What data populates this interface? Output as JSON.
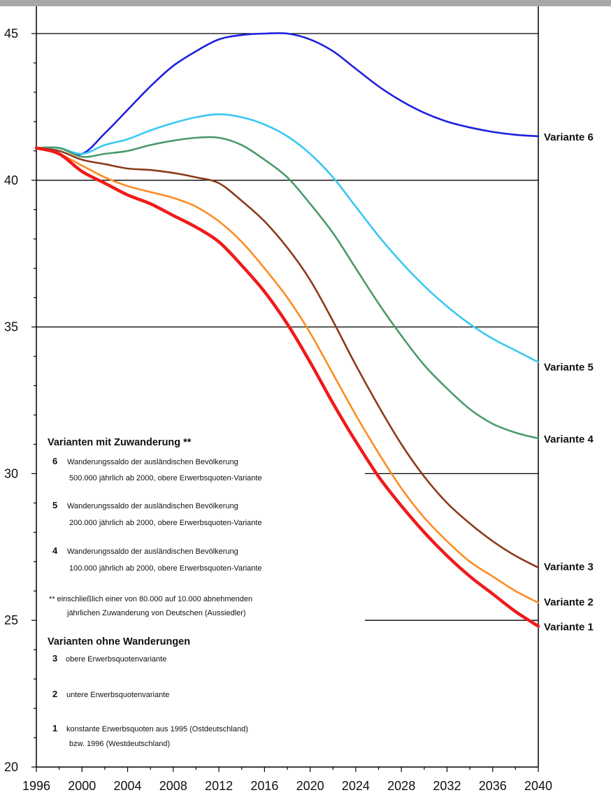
{
  "chart_data": {
    "type": "line",
    "xlim": [
      1996,
      2040
    ],
    "ylim": [
      20,
      45
    ],
    "x_ticks": [
      "1996",
      "2000",
      "2004",
      "2008",
      "2012",
      "2016",
      "2020",
      "2024",
      "2028",
      "2032",
      "2036",
      "2040"
    ],
    "y_ticks": [
      "20",
      "25",
      "30",
      "35",
      "40",
      "45"
    ],
    "gridlines_y": [
      25,
      30,
      35,
      40,
      45
    ],
    "series": [
      {
        "name": "Variante 6",
        "color": "#1f1fe0",
        "points": [
          [
            1996,
            41.1
          ],
          [
            1998,
            41.1
          ],
          [
            2000,
            40.9
          ],
          [
            2002,
            41.6
          ],
          [
            2004,
            42.4
          ],
          [
            2006,
            43.2
          ],
          [
            2008,
            43.9
          ],
          [
            2010,
            44.4
          ],
          [
            2012,
            44.8
          ],
          [
            2014,
            44.95
          ],
          [
            2016,
            45.0
          ],
          [
            2018,
            45.0
          ],
          [
            2020,
            44.8
          ],
          [
            2022,
            44.4
          ],
          [
            2024,
            43.8
          ],
          [
            2026,
            43.2
          ],
          [
            2028,
            42.7
          ],
          [
            2030,
            42.3
          ],
          [
            2032,
            42.0
          ],
          [
            2034,
            41.8
          ],
          [
            2036,
            41.65
          ],
          [
            2038,
            41.55
          ],
          [
            2040,
            41.5
          ]
        ]
      },
      {
        "name": "Variante 5",
        "color": "#38c8f4",
        "points": [
          [
            1996,
            41.1
          ],
          [
            1998,
            41.1
          ],
          [
            2000,
            40.9
          ],
          [
            2002,
            41.2
          ],
          [
            2004,
            41.4
          ],
          [
            2006,
            41.7
          ],
          [
            2008,
            41.95
          ],
          [
            2010,
            42.15
          ],
          [
            2012,
            42.25
          ],
          [
            2014,
            42.15
          ],
          [
            2016,
            41.9
          ],
          [
            2018,
            41.5
          ],
          [
            2020,
            40.9
          ],
          [
            2022,
            40.1
          ],
          [
            2024,
            39.1
          ],
          [
            2026,
            38.1
          ],
          [
            2028,
            37.2
          ],
          [
            2030,
            36.4
          ],
          [
            2032,
            35.7
          ],
          [
            2034,
            35.1
          ],
          [
            2036,
            34.6
          ],
          [
            2038,
            34.2
          ],
          [
            2040,
            33.8
          ]
        ]
      },
      {
        "name": "Variante 4",
        "color": "#4a9a6a",
        "points": [
          [
            1996,
            41.1
          ],
          [
            1998,
            41.1
          ],
          [
            2000,
            40.8
          ],
          [
            2002,
            40.9
          ],
          [
            2004,
            41.0
          ],
          [
            2006,
            41.2
          ],
          [
            2008,
            41.35
          ],
          [
            2010,
            41.45
          ],
          [
            2012,
            41.45
          ],
          [
            2014,
            41.2
          ],
          [
            2016,
            40.7
          ],
          [
            2018,
            40.1
          ],
          [
            2020,
            39.2
          ],
          [
            2022,
            38.2
          ],
          [
            2024,
            37.0
          ],
          [
            2026,
            35.8
          ],
          [
            2028,
            34.7
          ],
          [
            2030,
            33.7
          ],
          [
            2032,
            32.9
          ],
          [
            2034,
            32.2
          ],
          [
            2036,
            31.7
          ],
          [
            2038,
            31.4
          ],
          [
            2040,
            31.2
          ]
        ]
      },
      {
        "name": "Variante 3",
        "color": "#8b3a1a",
        "points": [
          [
            1996,
            41.1
          ],
          [
            1998,
            41.0
          ],
          [
            2000,
            40.7
          ],
          [
            2002,
            40.55
          ],
          [
            2004,
            40.4
          ],
          [
            2006,
            40.35
          ],
          [
            2008,
            40.25
          ],
          [
            2010,
            40.1
          ],
          [
            2012,
            39.9
          ],
          [
            2014,
            39.3
          ],
          [
            2016,
            38.6
          ],
          [
            2018,
            37.7
          ],
          [
            2020,
            36.6
          ],
          [
            2022,
            35.2
          ],
          [
            2024,
            33.7
          ],
          [
            2026,
            32.3
          ],
          [
            2028,
            31.0
          ],
          [
            2030,
            29.9
          ],
          [
            2032,
            29.0
          ],
          [
            2034,
            28.3
          ],
          [
            2036,
            27.7
          ],
          [
            2038,
            27.2
          ],
          [
            2040,
            26.8
          ]
        ]
      },
      {
        "name": "Variante 2",
        "color": "#ff8a1e",
        "points": [
          [
            1996,
            41.1
          ],
          [
            1998,
            40.9
          ],
          [
            2000,
            40.5
          ],
          [
            2002,
            40.1
          ],
          [
            2004,
            39.8
          ],
          [
            2006,
            39.6
          ],
          [
            2008,
            39.4
          ],
          [
            2010,
            39.1
          ],
          [
            2012,
            38.6
          ],
          [
            2014,
            37.9
          ],
          [
            2016,
            37.0
          ],
          [
            2018,
            36.0
          ],
          [
            2020,
            34.8
          ],
          [
            2022,
            33.4
          ],
          [
            2024,
            32.0
          ],
          [
            2026,
            30.7
          ],
          [
            2028,
            29.5
          ],
          [
            2030,
            28.5
          ],
          [
            2032,
            27.7
          ],
          [
            2034,
            27.0
          ],
          [
            2036,
            26.5
          ],
          [
            2038,
            26.0
          ],
          [
            2040,
            25.6
          ]
        ]
      },
      {
        "name": "Variante 1",
        "color": "#f01a1a",
        "points": [
          [
            1996,
            41.1
          ],
          [
            1998,
            40.9
          ],
          [
            2000,
            40.3
          ],
          [
            2002,
            39.9
          ],
          [
            2004,
            39.5
          ],
          [
            2006,
            39.2
          ],
          [
            2008,
            38.8
          ],
          [
            2010,
            38.4
          ],
          [
            2012,
            37.9
          ],
          [
            2014,
            37.1
          ],
          [
            2016,
            36.2
          ],
          [
            2018,
            35.1
          ],
          [
            2020,
            33.8
          ],
          [
            2022,
            32.4
          ],
          [
            2024,
            31.1
          ],
          [
            2026,
            29.9
          ],
          [
            2028,
            28.9
          ],
          [
            2030,
            28.0
          ],
          [
            2032,
            27.2
          ],
          [
            2034,
            26.5
          ],
          [
            2036,
            25.9
          ],
          [
            2038,
            25.3
          ],
          [
            2040,
            24.8
          ]
        ]
      }
    ],
    "legend": {
      "heading_with": "Varianten mit Zuwanderung **",
      "items_with": [
        {
          "num": "6",
          "line1": "Wanderungssaldo der ausländischen Bevölkerung",
          "line2": "500.000 jährlich ab 2000, obere Erwerbsquoten-Variante"
        },
        {
          "num": "5",
          "line1": "Wanderungssaldo der ausländischen Bevölkerung",
          "line2": "200.000 jährlich ab 2000, obere Erwerbsquoten-Variante"
        },
        {
          "num": "4",
          "line1": "Wanderungssaldo der ausländischen Bevölkerung",
          "line2": "100.000 jährlich ab 2000, obere Erwerbsquoten-Variante"
        }
      ],
      "note_line1": "** einschließlich einer von 80.000 auf 10.000 abnehmenden",
      "note_line2": "jährlichen Zuwanderung von Deutschen (Aussiedler)",
      "heading_without": "Varianten ohne Wanderungen",
      "items_without": [
        {
          "num": "3",
          "line1": "obere Erwerbsquotenvariante",
          "line2": ""
        },
        {
          "num": "2",
          "line1": "untere Erwerbsquotenvariante",
          "line2": ""
        },
        {
          "num": "1",
          "line1": "konstante Erwerbsquoten aus 1995 (Ostdeutschland)",
          "line2": "bzw. 1996 (Westdeutschland)"
        }
      ]
    }
  }
}
